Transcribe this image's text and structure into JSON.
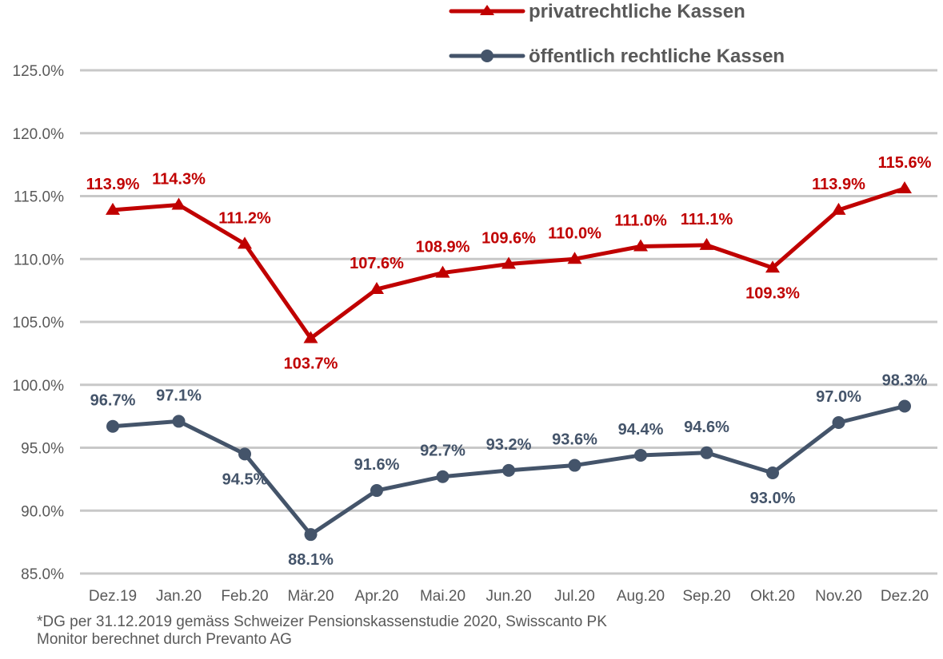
{
  "chart_data": {
    "type": "line",
    "title": "",
    "xlabel": "",
    "ylabel": "",
    "categories": [
      "Dez.19",
      "Jan.20",
      "Feb.20",
      "Mär.20",
      "Apr.20",
      "Mai.20",
      "Jun.20",
      "Jul.20",
      "Aug.20",
      "Sep.20",
      "Okt.20",
      "Nov.20",
      "Dez.20"
    ],
    "ylim": [
      85,
      125
    ],
    "yticks": [
      125,
      120,
      115,
      110,
      105,
      100,
      95,
      90,
      85
    ],
    "ytick_labels": [
      "125.0%",
      "120.0%",
      "115.0%",
      "110.0%",
      "105.0%",
      "100.0%",
      "95.0%",
      "90.0%",
      "85.0%"
    ],
    "grid": true,
    "legend_position": "top-right",
    "series": [
      {
        "name": "privatrechtliche Kassen",
        "color": "#C00000",
        "marker": "triangle",
        "values": [
          113.9,
          114.3,
          111.2,
          103.7,
          107.6,
          108.9,
          109.6,
          110.0,
          111.0,
          111.1,
          109.3,
          113.9,
          115.6
        ],
        "labels": [
          "113.9%",
          "114.3%",
          "111.2%",
          "103.7%",
          "107.6%",
          "108.9%",
          "109.6%",
          "110.0%",
          "111.0%",
          "111.1%",
          "109.3%",
          "113.9%",
          "115.6%"
        ],
        "label_positions": [
          "above",
          "above",
          "above",
          "below",
          "above",
          "above",
          "above",
          "above",
          "above",
          "above",
          "below",
          "above",
          "above"
        ]
      },
      {
        "name": "öffentlich rechtliche Kassen",
        "color": "#44546A",
        "marker": "circle",
        "values": [
          96.7,
          97.1,
          94.5,
          88.1,
          91.6,
          92.7,
          93.2,
          93.6,
          94.4,
          94.6,
          93.0,
          97.0,
          98.3
        ],
        "labels": [
          "96.7%",
          "97.1%",
          "94.5%",
          "88.1%",
          "91.6%",
          "92.7%",
          "93.2%",
          "93.6%",
          "94.4%",
          "94.6%",
          "93.0%",
          "97.0%",
          "98.3%"
        ],
        "label_positions": [
          "above",
          "above",
          "below",
          "below",
          "above",
          "above",
          "above",
          "above",
          "above",
          "above",
          "below",
          "above",
          "above"
        ]
      }
    ],
    "footnote_lines": [
      "*DG per 31.12.2019 gemäss Schweizer Pensionskassenstudie 2020, Swisscanto PK",
      "Monitor berechnet durch Prevanto AG"
    ]
  }
}
